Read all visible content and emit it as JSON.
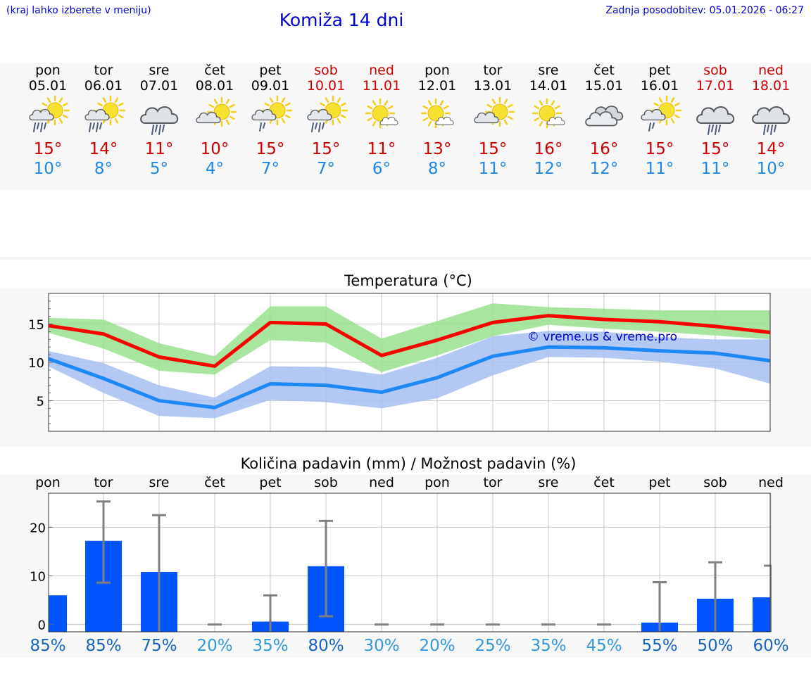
{
  "header": {
    "city_hint": "(kraj lahko izberete v meniju)",
    "title": "Komiža 14 dni",
    "last_update": "Zadnja posodobitev: 05.01.2026 - 06:27"
  },
  "days": [
    {
      "name": "pon",
      "date": "05.01",
      "weekend": false,
      "icon": "sun-cloud-rain-icon",
      "tmax": "15°",
      "tmin": "10°"
    },
    {
      "name": "tor",
      "date": "06.01",
      "weekend": false,
      "icon": "sun-cloud-rain-icon",
      "tmax": "14°",
      "tmin": "8°"
    },
    {
      "name": "sre",
      "date": "07.01",
      "weekend": false,
      "icon": "cloud-rain-icon",
      "tmax": "11°",
      "tmin": "5°"
    },
    {
      "name": "čet",
      "date": "08.01",
      "weekend": false,
      "icon": "sun-cloud-icon",
      "tmax": "10°",
      "tmin": "4°"
    },
    {
      "name": "pet",
      "date": "09.01",
      "weekend": false,
      "icon": "sun-cloud-light-rain-icon",
      "tmax": "15°",
      "tmin": "7°"
    },
    {
      "name": "sob",
      "date": "10.01",
      "weekend": true,
      "icon": "sun-cloud-rain-icon",
      "tmax": "15°",
      "tmin": "7°"
    },
    {
      "name": "ned",
      "date": "11.01",
      "weekend": true,
      "icon": "sun-small-cloud-icon",
      "tmax": "11°",
      "tmin": "6°"
    },
    {
      "name": "pon",
      "date": "12.01",
      "weekend": false,
      "icon": "sun-small-cloud-icon",
      "tmax": "13°",
      "tmin": "8°"
    },
    {
      "name": "tor",
      "date": "13.01",
      "weekend": false,
      "icon": "sun-cloud-icon",
      "tmax": "15°",
      "tmin": "11°"
    },
    {
      "name": "sre",
      "date": "14.01",
      "weekend": false,
      "icon": "sun-small-cloud-icon",
      "tmax": "16°",
      "tmin": "12°"
    },
    {
      "name": "čet",
      "date": "15.01",
      "weekend": false,
      "icon": "cloudy-icon",
      "tmax": "16°",
      "tmin": "12°"
    },
    {
      "name": "pet",
      "date": "16.01",
      "weekend": false,
      "icon": "sun-cloud-light-rain-icon",
      "tmax": "15°",
      "tmin": "11°"
    },
    {
      "name": "sob",
      "date": "17.01",
      "weekend": true,
      "icon": "cloud-rain-icon",
      "tmax": "15°",
      "tmin": "11°"
    },
    {
      "name": "ned",
      "date": "18.01",
      "weekend": true,
      "icon": "cloud-rain-icon",
      "tmax": "14°",
      "tmin": "10°"
    }
  ],
  "chart_data": [
    {
      "type": "line",
      "title": "Temperatura (°C)",
      "watermark": "© vreme.us & vreme.pro",
      "x": [
        0,
        1,
        2,
        3,
        4,
        5,
        6,
        7,
        8,
        9,
        10,
        11,
        12,
        13
      ],
      "yticks": [
        5,
        10,
        15
      ],
      "ylim": [
        1,
        19
      ],
      "series": [
        {
          "name": "max",
          "color": "#ff0000",
          "values": [
            14.8,
            13.7,
            10.7,
            9.5,
            15.2,
            15.0,
            10.9,
            12.9,
            15.2,
            16.1,
            15.6,
            15.3,
            14.7,
            13.9
          ]
        },
        {
          "name": "max-range",
          "color": "#99e28f",
          "low": [
            13.9,
            11.8,
            8.9,
            8.4,
            12.9,
            12.6,
            8.7,
            10.9,
            13.4,
            14.9,
            14.4,
            14.0,
            13.5,
            13.0
          ],
          "high": [
            15.8,
            15.6,
            12.5,
            10.8,
            17.3,
            17.3,
            13.1,
            15.4,
            17.7,
            17.2,
            17.0,
            16.8,
            16.8,
            16.8
          ]
        },
        {
          "name": "min",
          "color": "#1e88f5",
          "values": [
            10.5,
            7.9,
            5.0,
            4.1,
            7.2,
            7.0,
            6.1,
            8.0,
            10.8,
            12.0,
            11.9,
            11.5,
            11.2,
            10.2
          ]
        },
        {
          "name": "min-range",
          "color": "#a6bff2",
          "low": [
            9.5,
            6.0,
            3.0,
            2.7,
            5.1,
            4.8,
            4.0,
            5.3,
            8.3,
            10.7,
            10.6,
            10.1,
            9.2,
            7.2
          ],
          "high": [
            11.5,
            9.9,
            7.0,
            5.4,
            9.5,
            9.4,
            8.4,
            10.6,
            13.4,
            14.1,
            14.0,
            13.3,
            13.0,
            13.0
          ]
        }
      ]
    },
    {
      "type": "bar",
      "title": "Količina padavin (mm) / Možnost padavin (%)",
      "categories": [
        "pon",
        "tor",
        "sre",
        "čet",
        "pet",
        "sob",
        "ned",
        "pon",
        "tor",
        "sre",
        "čet",
        "pet",
        "sob",
        "ned"
      ],
      "ylabel": "mm",
      "yticks": [
        0,
        10,
        20
      ],
      "ylim": [
        -1.5,
        27
      ],
      "values": [
        6.0,
        17.2,
        10.8,
        0,
        0.6,
        12.0,
        0,
        0,
        0,
        0,
        0,
        0.4,
        5.3,
        5.6
      ],
      "error_high": [
        null,
        25.3,
        22.5,
        0,
        6.0,
        21.3,
        0,
        0,
        0,
        0,
        0,
        8.7,
        12.8,
        12.1
      ],
      "error_low": [
        null,
        8.6,
        -1.4,
        0,
        -1.4,
        1.7,
        0,
        0,
        0,
        0,
        0,
        -1.4,
        -1.4,
        -1.4
      ],
      "probability": [
        "85%",
        "85%",
        "75%",
        "20%",
        "35%",
        "80%",
        "30%",
        "20%",
        "25%",
        "35%",
        "45%",
        "55%",
        "50%",
        "60%"
      ]
    }
  ],
  "colors": {
    "title": "#0000cc",
    "max_temp": "#cc0000",
    "min_temp": "#1e88e5",
    "bar": "#0055ff",
    "pct_high": "#1565c0",
    "pct_low": "#3399dd"
  }
}
